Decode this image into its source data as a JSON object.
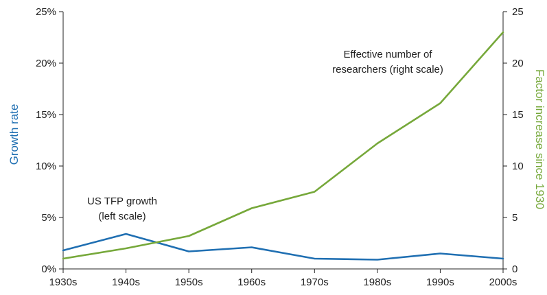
{
  "chart_data": {
    "type": "line",
    "categories": [
      "1930s",
      "1940s",
      "1950s",
      "1960s",
      "1970s",
      "1980s",
      "1990s",
      "2000s"
    ],
    "y_left": {
      "label": "Growth rate",
      "range": [
        0,
        25
      ],
      "ticks": [
        0,
        5,
        10,
        15,
        20,
        25
      ],
      "tick_labels": [
        "0%",
        "5%",
        "10%",
        "15%",
        "20%",
        "25%"
      ],
      "color": "#1f6fb2"
    },
    "y_right": {
      "label": "Factor increase since 1930",
      "range": [
        0,
        25
      ],
      "ticks": [
        0,
        5,
        10,
        15,
        20,
        25
      ],
      "tick_labels": [
        "0",
        "5",
        "10",
        "15",
        "20",
        "25"
      ],
      "color": "#76a83a"
    },
    "series": [
      {
        "values": [
          1.8,
          3.4,
          1.7,
          2.1,
          1.0,
          0.9,
          1.5,
          1.0
        ],
        "axis": "left",
        "color": "#1f6fb2"
      },
      {
        "values": [
          1.0,
          2.0,
          3.2,
          5.9,
          7.5,
          12.2,
          16.1,
          23.0
        ],
        "axis": "right",
        "color": "#76a83a"
      }
    ],
    "annotations": [
      {
        "id": "tfp",
        "lines": [
          "US TFP growth",
          "(left scale)"
        ]
      },
      {
        "id": "researchers",
        "lines": [
          "Effective number of",
          "researchers (right scale)"
        ]
      }
    ],
    "grid": false
  }
}
